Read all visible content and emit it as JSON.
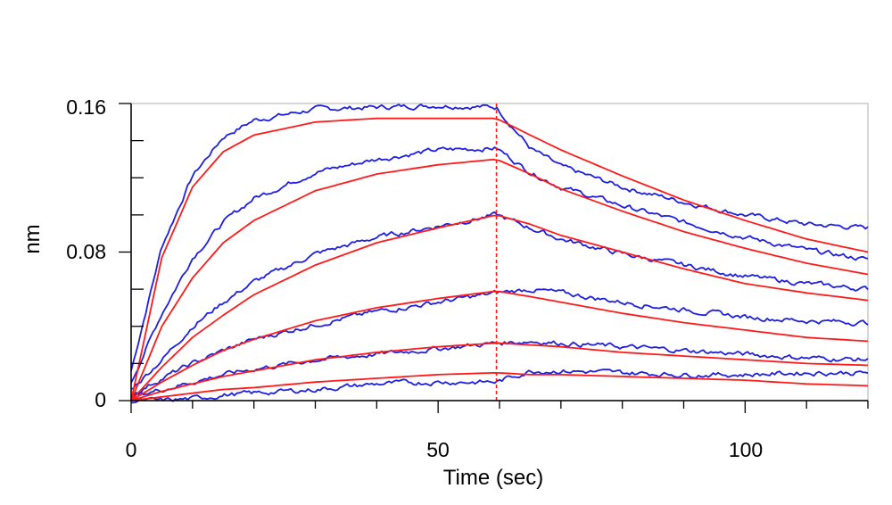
{
  "chart_data": {
    "type": "line",
    "title": "",
    "xlabel": "Time (sec)",
    "ylabel": "nm",
    "xlim": [
      0,
      120
    ],
    "ylim": [
      0,
      0.16
    ],
    "x_ticks": [
      0,
      50,
      100
    ],
    "x_tick_labels": [
      "0",
      "50",
      "100"
    ],
    "y_ticks": [
      0,
      0.08,
      0.16
    ],
    "y_tick_labels": [
      "0",
      "0.08",
      "0.16"
    ],
    "grid": false,
    "legend": "none",
    "dissociation_start": 59.5,
    "colors": {
      "measured": "#1f1fe0",
      "fit": "#ff1a1a",
      "marker": "#ff1a1a",
      "axis": "#000000",
      "frame": "#c8c8c8"
    },
    "series": [
      {
        "kind": "measured",
        "x": [
          0,
          5,
          10,
          15,
          20,
          30,
          40,
          50,
          59.5,
          65,
          70,
          80,
          90,
          100,
          110,
          120
        ],
        "y": [
          0.016,
          0.083,
          0.121,
          0.142,
          0.151,
          0.157,
          0.158,
          0.159,
          0.158,
          0.136,
          0.126,
          0.115,
          0.107,
          0.1,
          0.095,
          0.093
        ]
      },
      {
        "kind": "measured",
        "x": [
          0,
          5,
          10,
          15,
          20,
          30,
          40,
          50,
          59.5,
          65,
          70,
          80,
          90,
          100,
          110,
          120
        ],
        "y": [
          0.01,
          0.047,
          0.077,
          0.096,
          0.109,
          0.123,
          0.13,
          0.135,
          0.136,
          0.123,
          0.115,
          0.105,
          0.096,
          0.088,
          0.081,
          0.076
        ]
      },
      {
        "kind": "measured",
        "x": [
          0,
          5,
          10,
          15,
          20,
          30,
          40,
          50,
          59.5,
          65,
          70,
          80,
          90,
          100,
          110,
          120
        ],
        "y": [
          0.006,
          0.022,
          0.04,
          0.053,
          0.064,
          0.079,
          0.088,
          0.094,
          0.1,
          0.093,
          0.087,
          0.079,
          0.073,
          0.067,
          0.063,
          0.06
        ]
      },
      {
        "kind": "measured",
        "x": [
          0,
          5,
          10,
          15,
          20,
          30,
          40,
          50,
          59.5,
          65,
          70,
          80,
          90,
          100,
          110,
          120
        ],
        "y": [
          0.003,
          0.012,
          0.02,
          0.027,
          0.033,
          0.041,
          0.048,
          0.053,
          0.058,
          0.06,
          0.058,
          0.053,
          0.049,
          0.045,
          0.043,
          0.042
        ]
      },
      {
        "kind": "measured",
        "x": [
          0,
          5,
          10,
          15,
          20,
          30,
          40,
          50,
          59.5,
          65,
          70,
          80,
          90,
          100,
          110,
          120
        ],
        "y": [
          0.002,
          0.006,
          0.01,
          0.014,
          0.017,
          0.022,
          0.025,
          0.028,
          0.031,
          0.032,
          0.031,
          0.029,
          0.027,
          0.025,
          0.023,
          0.022
        ]
      },
      {
        "kind": "measured",
        "x": [
          0,
          5,
          10,
          15,
          20,
          30,
          40,
          50,
          59.5,
          65,
          70,
          80,
          90,
          100,
          110,
          120
        ],
        "y": [
          0.0,
          0.0,
          0.001,
          0.003,
          0.004,
          0.006,
          0.009,
          0.01,
          0.01,
          0.016,
          0.016,
          0.015,
          0.014,
          0.014,
          0.015,
          0.015
        ]
      },
      {
        "kind": "fit",
        "x": [
          0,
          5,
          10,
          15,
          20,
          30,
          40,
          50,
          59.5,
          65,
          70,
          80,
          90,
          100,
          110,
          120
        ],
        "y": [
          0.0,
          0.077,
          0.115,
          0.134,
          0.143,
          0.15,
          0.152,
          0.152,
          0.152,
          0.143,
          0.135,
          0.121,
          0.108,
          0.097,
          0.087,
          0.08
        ]
      },
      {
        "kind": "fit",
        "x": [
          0,
          5,
          10,
          15,
          20,
          30,
          40,
          50,
          59.5,
          65,
          70,
          80,
          90,
          100,
          110,
          120
        ],
        "y": [
          0.0,
          0.04,
          0.066,
          0.085,
          0.097,
          0.113,
          0.122,
          0.127,
          0.13,
          0.122,
          0.114,
          0.102,
          0.091,
          0.082,
          0.074,
          0.068
        ]
      },
      {
        "kind": "fit",
        "x": [
          0,
          5,
          10,
          15,
          20,
          30,
          40,
          50,
          59.5,
          65,
          70,
          80,
          90,
          100,
          110,
          120
        ],
        "y": [
          0.0,
          0.018,
          0.034,
          0.046,
          0.057,
          0.073,
          0.085,
          0.093,
          0.1,
          0.095,
          0.089,
          0.08,
          0.071,
          0.063,
          0.058,
          0.054
        ]
      },
      {
        "kind": "fit",
        "x": [
          0,
          5,
          10,
          15,
          20,
          30,
          40,
          50,
          59.5,
          65,
          70,
          80,
          90,
          100,
          110,
          120
        ],
        "y": [
          0.0,
          0.01,
          0.019,
          0.027,
          0.033,
          0.043,
          0.05,
          0.055,
          0.059,
          0.056,
          0.053,
          0.047,
          0.042,
          0.038,
          0.034,
          0.032
        ]
      },
      {
        "kind": "fit",
        "x": [
          0,
          5,
          10,
          15,
          20,
          30,
          40,
          50,
          59.5,
          65,
          70,
          80,
          90,
          100,
          110,
          120
        ],
        "y": [
          0.0,
          0.005,
          0.009,
          0.013,
          0.016,
          0.022,
          0.026,
          0.029,
          0.031,
          0.03,
          0.029,
          0.026,
          0.024,
          0.022,
          0.02,
          0.019
        ]
      },
      {
        "kind": "fit",
        "x": [
          0,
          5,
          10,
          15,
          20,
          30,
          40,
          50,
          59.5,
          65,
          70,
          80,
          90,
          100,
          110,
          120
        ],
        "y": [
          0.0,
          0.002,
          0.004,
          0.006,
          0.007,
          0.01,
          0.012,
          0.014,
          0.015,
          0.014,
          0.014,
          0.013,
          0.012,
          0.011,
          0.009,
          0.008
        ]
      }
    ]
  }
}
